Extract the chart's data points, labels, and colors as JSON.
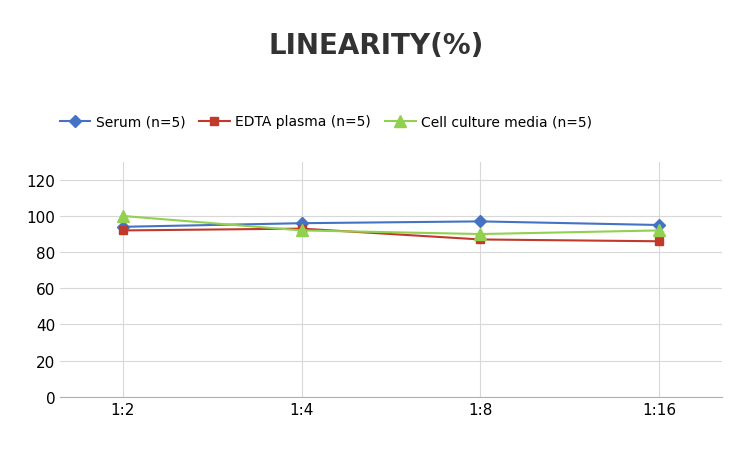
{
  "title": "LINEARITY(%)",
  "x_labels": [
    "1:2",
    "1:4",
    "1:8",
    "1:16"
  ],
  "x_positions": [
    0,
    1,
    2,
    3
  ],
  "series": [
    {
      "label": "Serum (n=5)",
      "values": [
        94,
        96,
        97,
        95
      ],
      "color": "#4472C4",
      "marker": "D",
      "marker_size": 6,
      "linewidth": 1.5
    },
    {
      "label": "EDTA plasma (n=5)",
      "values": [
        92,
        93,
        87,
        86
      ],
      "color": "#C0392B",
      "marker": "s",
      "marker_size": 6,
      "linewidth": 1.5
    },
    {
      "label": "Cell culture media (n=5)",
      "values": [
        100,
        92,
        90,
        92
      ],
      "color": "#92D050",
      "marker": "^",
      "marker_size": 8,
      "linewidth": 1.5
    }
  ],
  "ylim": [
    0,
    130
  ],
  "yticks": [
    0,
    20,
    40,
    60,
    80,
    100,
    120
  ],
  "grid_color": "#D8D8D8",
  "background_color": "#FFFFFF",
  "title_fontsize": 20,
  "legend_fontsize": 10,
  "tick_fontsize": 11
}
